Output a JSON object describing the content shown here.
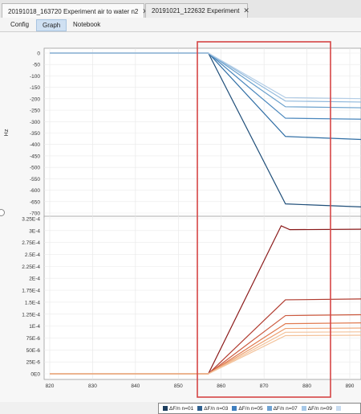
{
  "tabs": [
    {
      "label": "20191018_163720 Experiment air to water n2",
      "close": "✕",
      "active": true
    },
    {
      "label": "20191021_122632 Experiment",
      "close": "✕",
      "active": false
    }
  ],
  "subtabs": [
    "Config",
    "Graph",
    "Notebook"
  ],
  "selected_subtab": "Graph",
  "colors": {
    "frequency": [
      "#1f4e79",
      "#2e6da4",
      "#4a87bd",
      "#6aa0cc",
      "#8fb8dc",
      "#b3cde6"
    ],
    "dissipation": [
      "#8b1a1a",
      "#b03a2e",
      "#cc5a3f",
      "#e07a50",
      "#eda070",
      "#f3c29a"
    ],
    "highlight": "#d64545"
  },
  "chart_data": [
    {
      "type": "line",
      "ylabel": "Hz",
      "ylim": [
        -700,
        0
      ],
      "yticks": [
        "0",
        "-50",
        "-100",
        "-150",
        "-200",
        "-250",
        "-300",
        "-350",
        "-400",
        "-450",
        "-500",
        "-550",
        "-600",
        "-650",
        "-700"
      ],
      "xlim": [
        820,
        895
      ],
      "series": [
        {
          "values": [
            [
              820,
              0
            ],
            [
              857,
              0
            ],
            [
              875,
              -660
            ],
            [
              895,
              -675
            ]
          ]
        },
        {
          "values": [
            [
              820,
              0
            ],
            [
              857,
              0
            ],
            [
              875,
              -365
            ],
            [
              895,
              -380
            ]
          ]
        },
        {
          "values": [
            [
              820,
              0
            ],
            [
              857,
              0
            ],
            [
              875,
              -285
            ],
            [
              895,
              -290
            ]
          ]
        },
        {
          "values": [
            [
              820,
              0
            ],
            [
              857,
              0
            ],
            [
              875,
              -235
            ],
            [
              895,
              -240
            ]
          ]
        },
        {
          "values": [
            [
              820,
              0
            ],
            [
              857,
              0
            ],
            [
              875,
              -210
            ],
            [
              895,
              -215
            ]
          ]
        },
        {
          "values": [
            [
              820,
              0
            ],
            [
              857,
              0
            ],
            [
              875,
              -195
            ],
            [
              895,
              -200
            ]
          ]
        }
      ]
    },
    {
      "type": "line",
      "ylim": [
        0,
        0.000325
      ],
      "yticks": [
        "0E0",
        "25E-6",
        "50E-6",
        "75E-6",
        "1E-4",
        "1.25E-4",
        "1.5E-4",
        "1.75E-4",
        "2E-4",
        "2.25E-4",
        "2.5E-4",
        "2.75E-4",
        "3E-4",
        "3.25E-4"
      ],
      "xticks": [
        "820",
        "830",
        "840",
        "850",
        "860",
        "870",
        "880",
        "890"
      ],
      "xlim": [
        820,
        895
      ],
      "series": [
        {
          "values": [
            [
              820,
              0
            ],
            [
              857,
              0
            ],
            [
              874,
              0.00031
            ],
            [
              876,
              0.000302
            ],
            [
              895,
              0.000303
            ]
          ]
        },
        {
          "values": [
            [
              820,
              0
            ],
            [
              857,
              0
            ],
            [
              875,
              0.000155
            ],
            [
              895,
              0.000157
            ]
          ]
        },
        {
          "values": [
            [
              820,
              0
            ],
            [
              857,
              0
            ],
            [
              875,
              0.000122
            ],
            [
              895,
              0.000124
            ]
          ]
        },
        {
          "values": [
            [
              820,
              0
            ],
            [
              857,
              0
            ],
            [
              875,
              0.000105
            ],
            [
              895,
              0.000107
            ]
          ]
        },
        {
          "values": [
            [
              820,
              0
            ],
            [
              857,
              0
            ],
            [
              875,
              9.5e-05
            ],
            [
              895,
              9.6e-05
            ]
          ]
        },
        {
          "values": [
            [
              820,
              0
            ],
            [
              857,
              0
            ],
            [
              875,
              8.7e-05
            ],
            [
              895,
              8.8e-05
            ]
          ]
        },
        {
          "values": [
            [
              820,
              0
            ],
            [
              857,
              0
            ],
            [
              875,
              8e-05
            ],
            [
              895,
              8.1e-05
            ]
          ]
        }
      ]
    }
  ],
  "legend": [
    {
      "label": "ΔF/n n=01",
      "color": "#1f3f5f"
    },
    {
      "label": "ΔF/n n=03",
      "color": "#2e5f8f"
    },
    {
      "label": "ΔF/n n=05",
      "color": "#3f7fbf"
    },
    {
      "label": "ΔF/n n=07",
      "color": "#6fa3d3"
    },
    {
      "label": "ΔF/n n=09",
      "color": "#a6c8e8"
    },
    {
      "label": "",
      "color": "#c8dcf0"
    }
  ]
}
